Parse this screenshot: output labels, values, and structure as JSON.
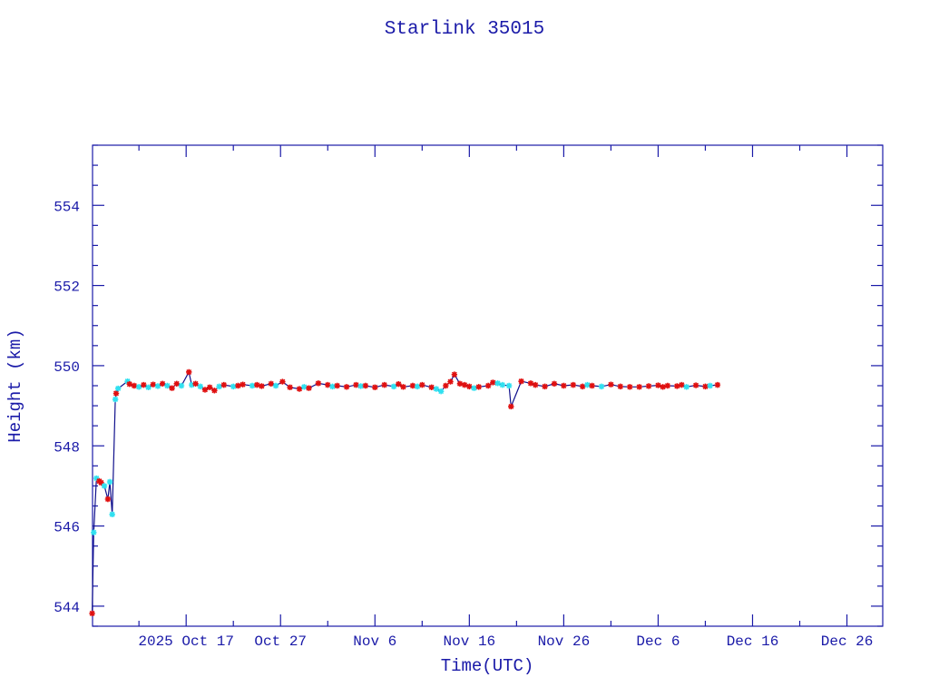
{
  "chart_data": {
    "type": "line",
    "title": "Starlink 35015",
    "xlabel": "Time(UTC)",
    "ylabel": "Height (km)",
    "xlim": [
      "2025-10-07T02:00",
      "2025-12-29T19:00"
    ],
    "ylim": [
      543.5,
      555.5
    ],
    "grid": false,
    "x_ticks": [
      {
        "t": "2025-10-17T00:00",
        "label": "2025 Oct 17"
      },
      {
        "t": "2025-10-27T00:00",
        "label": "Oct 27"
      },
      {
        "t": "2025-11-06T00:00",
        "label": "Nov  6"
      },
      {
        "t": "2025-11-16T00:00",
        "label": "Nov 16"
      },
      {
        "t": "2025-11-26T00:00",
        "label": "Nov 26"
      },
      {
        "t": "2025-12-06T00:00",
        "label": "Dec  6"
      },
      {
        "t": "2025-12-16T00:00",
        "label": "Dec 16"
      },
      {
        "t": "2025-12-26T00:00",
        "label": "Dec 26"
      }
    ],
    "y_ticks": [
      "544",
      "546",
      "548",
      "550",
      "552",
      "554"
    ],
    "colors": {
      "axis": "#1a1aa8",
      "line": "#10108c",
      "marker_red": "#e01010",
      "marker_cyan": "#30e0f0"
    },
    "series": [
      {
        "points": [
          [
            "2025-10-07T01:00",
            543.82,
            "r"
          ],
          [
            "2025-10-07T05:00",
            545.84,
            "c"
          ],
          [
            "2025-10-07T12:00",
            547.19,
            "c"
          ],
          [
            "2025-10-07T19:00",
            547.12,
            "r"
          ],
          [
            "2025-10-08T00:00",
            547.08,
            "r"
          ],
          [
            "2025-10-08T08:00",
            547.0,
            "c"
          ],
          [
            "2025-10-08T17:00",
            546.67,
            "r"
          ],
          [
            "2025-10-08T22:00",
            547.1,
            "c"
          ],
          [
            "2025-10-09T04:00",
            546.29,
            "c"
          ],
          [
            "2025-10-09T12:00",
            549.16,
            "c"
          ],
          [
            "2025-10-09T14:00",
            549.31,
            "r"
          ],
          [
            "2025-10-09T19:00",
            549.43,
            "c"
          ],
          [
            "2025-10-10T19:00",
            549.61,
            "c"
          ],
          [
            "2025-10-11T00:00",
            549.54,
            "r"
          ],
          [
            "2025-10-11T12:00",
            549.5,
            "r"
          ],
          [
            "2025-10-12T00:00",
            549.47,
            "c"
          ],
          [
            "2025-10-12T12:00",
            549.52,
            "r"
          ],
          [
            "2025-10-13T00:00",
            549.46,
            "c"
          ],
          [
            "2025-10-13T12:00",
            549.53,
            "r"
          ],
          [
            "2025-10-14T00:00",
            549.49,
            "c"
          ],
          [
            "2025-10-14T12:00",
            549.55,
            "r"
          ],
          [
            "2025-10-15T00:00",
            549.5,
            "c"
          ],
          [
            "2025-10-15T12:00",
            549.44,
            "r"
          ],
          [
            "2025-10-16T00:00",
            549.55,
            "r"
          ],
          [
            "2025-10-16T12:00",
            549.5,
            "c"
          ],
          [
            "2025-10-17T07:00",
            549.84,
            "r"
          ],
          [
            "2025-10-17T14:00",
            549.52,
            "c"
          ],
          [
            "2025-10-18T00:00",
            549.55,
            "r"
          ],
          [
            "2025-10-18T12:00",
            549.48,
            "c"
          ],
          [
            "2025-10-19T00:00",
            549.4,
            "r"
          ],
          [
            "2025-10-19T12:00",
            549.46,
            "r"
          ],
          [
            "2025-10-20T00:00",
            549.38,
            "r"
          ],
          [
            "2025-10-20T12:00",
            549.48,
            "c"
          ],
          [
            "2025-10-21T00:00",
            549.52,
            "r"
          ],
          [
            "2025-10-22T00:00",
            549.48,
            "c"
          ],
          [
            "2025-10-22T12:00",
            549.5,
            "r"
          ],
          [
            "2025-10-23T00:00",
            549.53,
            "r"
          ],
          [
            "2025-10-24T00:00",
            549.5,
            "c"
          ],
          [
            "2025-10-24T12:00",
            549.52,
            "r"
          ],
          [
            "2025-10-25T00:00",
            549.49,
            "r"
          ],
          [
            "2025-10-26T00:00",
            549.55,
            "r"
          ],
          [
            "2025-10-26T12:00",
            549.5,
            "c"
          ],
          [
            "2025-10-27T05:00",
            549.6,
            "r"
          ],
          [
            "2025-10-28T00:00",
            549.46,
            "r"
          ],
          [
            "2025-10-29T00:00",
            549.42,
            "r"
          ],
          [
            "2025-10-29T12:00",
            549.47,
            "c"
          ],
          [
            "2025-10-30T00:00",
            549.44,
            "r"
          ],
          [
            "2025-10-31T00:00",
            549.56,
            "r"
          ],
          [
            "2025-11-01T00:00",
            549.52,
            "r"
          ],
          [
            "2025-11-01T12:00",
            549.48,
            "c"
          ],
          [
            "2025-11-02T00:00",
            549.5,
            "r"
          ],
          [
            "2025-11-03T00:00",
            549.47,
            "r"
          ],
          [
            "2025-11-04T00:00",
            549.52,
            "r"
          ],
          [
            "2025-11-04T12:00",
            549.49,
            "c"
          ],
          [
            "2025-11-05T00:00",
            549.5,
            "r"
          ],
          [
            "2025-11-06T00:00",
            549.46,
            "r"
          ],
          [
            "2025-11-07T00:00",
            549.52,
            "r"
          ],
          [
            "2025-11-08T00:00",
            549.48,
            "c"
          ],
          [
            "2025-11-08T12:00",
            549.54,
            "r"
          ],
          [
            "2025-11-09T00:00",
            549.47,
            "r"
          ],
          [
            "2025-11-10T00:00",
            549.5,
            "r"
          ],
          [
            "2025-11-10T12:00",
            549.48,
            "c"
          ],
          [
            "2025-11-11T00:00",
            549.52,
            "r"
          ],
          [
            "2025-11-12T00:00",
            549.46,
            "r"
          ],
          [
            "2025-11-12T12:00",
            549.42,
            "c"
          ],
          [
            "2025-11-13T00:00",
            549.36,
            "c"
          ],
          [
            "2025-11-13T12:00",
            549.5,
            "r"
          ],
          [
            "2025-11-14T00:00",
            549.6,
            "r"
          ],
          [
            "2025-11-14T10:00",
            549.78,
            "r"
          ],
          [
            "2025-11-15T00:00",
            549.55,
            "r"
          ],
          [
            "2025-11-15T12:00",
            549.52,
            "r"
          ],
          [
            "2025-11-16T00:00",
            549.48,
            "r"
          ],
          [
            "2025-11-16T12:00",
            549.44,
            "c"
          ],
          [
            "2025-11-17T00:00",
            549.47,
            "r"
          ],
          [
            "2025-11-18T00:00",
            549.5,
            "r"
          ],
          [
            "2025-11-18T12:00",
            549.58,
            "r"
          ],
          [
            "2025-11-19T00:00",
            549.56,
            "c"
          ],
          [
            "2025-11-19T12:00",
            549.52,
            "c"
          ],
          [
            "2025-11-20T05:00",
            549.5,
            "c"
          ],
          [
            "2025-11-20T10:00",
            548.98,
            "r"
          ],
          [
            "2025-11-21T12:00",
            549.61,
            "r"
          ],
          [
            "2025-11-22T12:00",
            549.56,
            "r"
          ],
          [
            "2025-11-23T00:00",
            549.52,
            "r"
          ],
          [
            "2025-11-24T00:00",
            549.48,
            "r"
          ],
          [
            "2025-11-25T00:00",
            549.55,
            "r"
          ],
          [
            "2025-11-26T00:00",
            549.5,
            "r"
          ],
          [
            "2025-11-27T00:00",
            549.52,
            "r"
          ],
          [
            "2025-11-28T00:00",
            549.48,
            "r"
          ],
          [
            "2025-11-28T12:00",
            549.52,
            "c"
          ],
          [
            "2025-11-29T00:00",
            549.5,
            "r"
          ],
          [
            "2025-11-30T00:00",
            549.48,
            "c"
          ],
          [
            "2025-12-01T00:00",
            549.53,
            "r"
          ],
          [
            "2025-12-02T00:00",
            549.48,
            "r"
          ],
          [
            "2025-12-03T00:00",
            549.47,
            "r"
          ],
          [
            "2025-12-04T00:00",
            549.47,
            "r"
          ],
          [
            "2025-12-05T00:00",
            549.49,
            "r"
          ],
          [
            "2025-12-06T00:00",
            549.51,
            "r"
          ],
          [
            "2025-12-06T12:00",
            549.47,
            "r"
          ],
          [
            "2025-12-07T00:00",
            549.5,
            "r"
          ],
          [
            "2025-12-08T00:00",
            549.49,
            "r"
          ],
          [
            "2025-12-08T12:00",
            549.52,
            "r"
          ],
          [
            "2025-12-09T00:00",
            549.47,
            "c"
          ],
          [
            "2025-12-10T00:00",
            549.51,
            "r"
          ],
          [
            "2025-12-11T00:00",
            549.48,
            "r"
          ],
          [
            "2025-12-11T12:00",
            549.5,
            "c"
          ],
          [
            "2025-12-12T07:00",
            549.52,
            "r"
          ]
        ]
      }
    ]
  }
}
